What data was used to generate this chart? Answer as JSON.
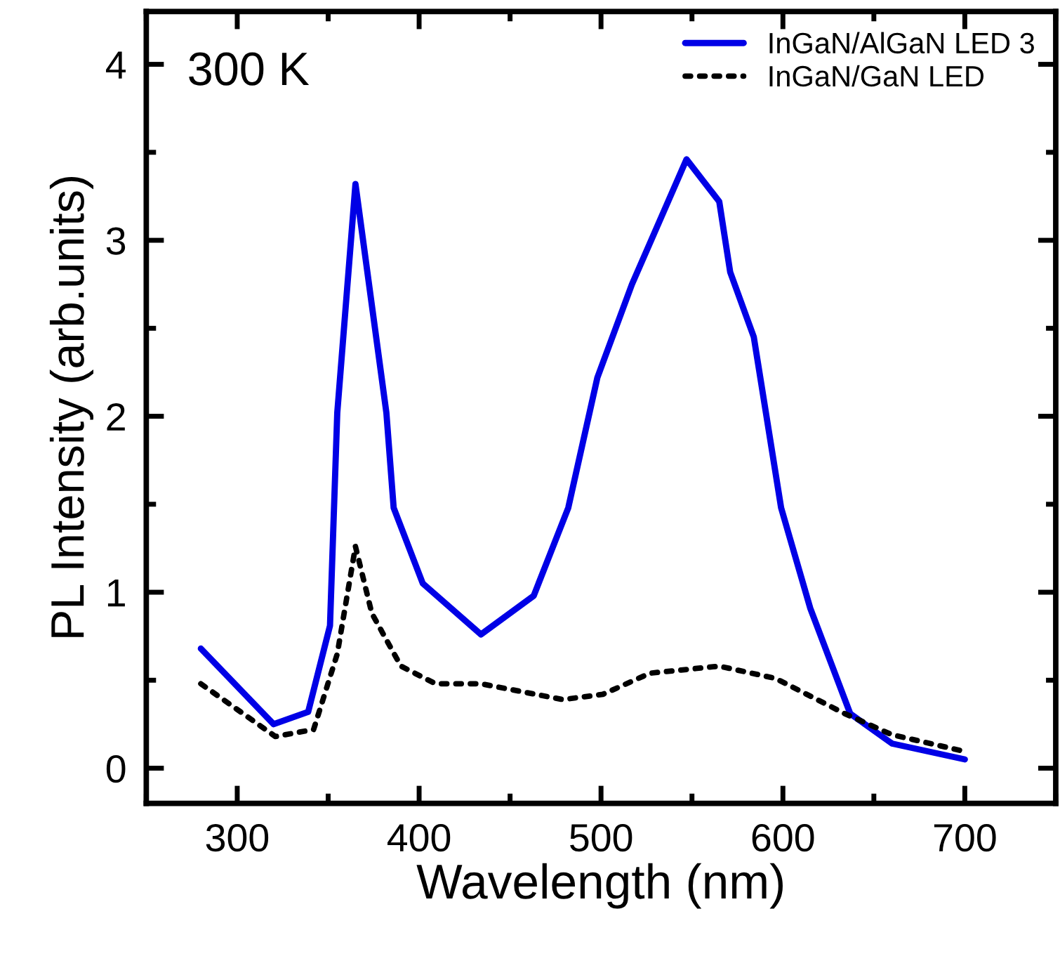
{
  "chart_data": {
    "type": "line",
    "xlabel": "Wavelength (nm)",
    "ylabel": "PL Intensity (arb.units)",
    "annotations": [
      "300 K"
    ],
    "xlim": [
      250,
      750
    ],
    "xticks": [
      300,
      400,
      500,
      600,
      700
    ],
    "ylim": [
      -0.2,
      4.3
    ],
    "yticks": [
      0,
      1,
      2,
      3,
      4
    ],
    "grid": false,
    "legend": "top right",
    "series": [
      {
        "name": "InGaN/AlGaN LED 3",
        "color": "#0000e6",
        "line_style": "solid",
        "x": [
          280,
          320,
          339,
          351,
          355,
          365,
          382,
          386,
          402,
          434,
          463,
          482,
          498,
          517,
          547,
          565,
          571,
          584,
          599,
          615,
          637,
          660,
          700
        ],
        "values": [
          0.68,
          0.25,
          0.32,
          0.81,
          2.02,
          3.32,
          2.02,
          1.48,
          1.05,
          0.76,
          0.98,
          1.48,
          2.22,
          2.75,
          3.46,
          3.22,
          2.82,
          2.45,
          1.48,
          0.91,
          0.31,
          0.14,
          0.05
        ]
      },
      {
        "name": "InGaN/GaN LED",
        "color": "#000000",
        "line_style": "dotted",
        "x": [
          280,
          321,
          342,
          355,
          365,
          374,
          390,
          409,
          434,
          479,
          501,
          527,
          565,
          596,
          634,
          660,
          698
        ],
        "values": [
          0.48,
          0.18,
          0.22,
          0.65,
          1.26,
          0.88,
          0.58,
          0.48,
          0.48,
          0.39,
          0.42,
          0.54,
          0.58,
          0.51,
          0.31,
          0.19,
          0.1
        ]
      }
    ]
  }
}
